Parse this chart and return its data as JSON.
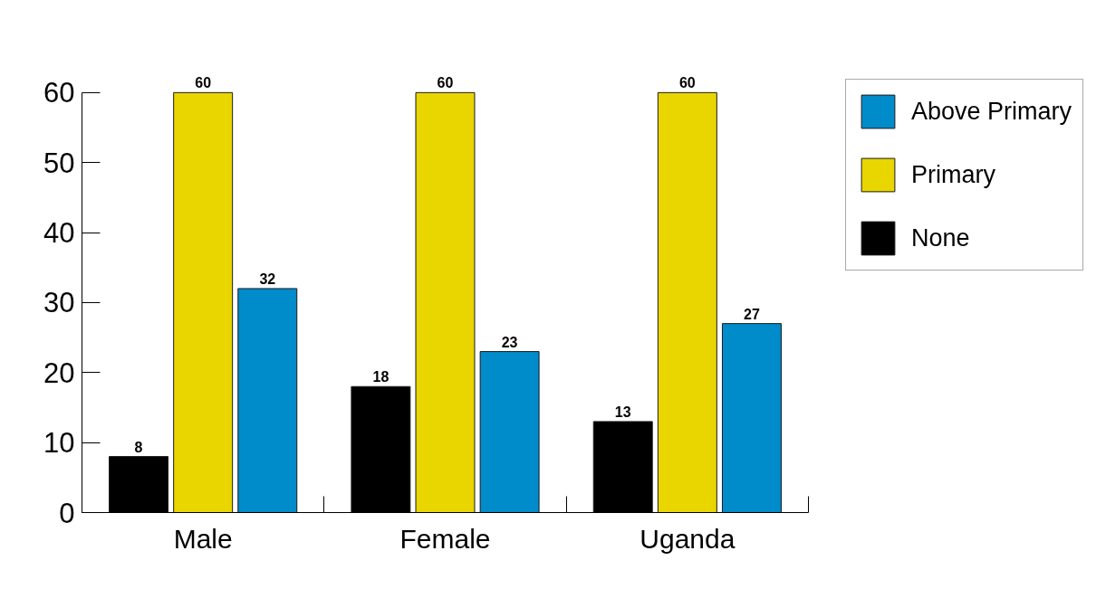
{
  "chart_data": {
    "type": "bar",
    "categories": [
      "Male",
      "Female",
      "Uganda"
    ],
    "series": [
      {
        "name": "None",
        "color": "#000000",
        "values": [
          8,
          18,
          13
        ]
      },
      {
        "name": "Primary",
        "color": "#e9d500",
        "values": [
          60,
          60,
          60
        ]
      },
      {
        "name": "Above Primary",
        "color": "#008bca",
        "values": [
          32,
          23,
          27
        ]
      }
    ],
    "ylim": [
      0,
      60
    ],
    "yticks": [
      0,
      10,
      20,
      30,
      40,
      50,
      60
    ],
    "data_labels": true,
    "legend": "top right",
    "grid": false
  }
}
